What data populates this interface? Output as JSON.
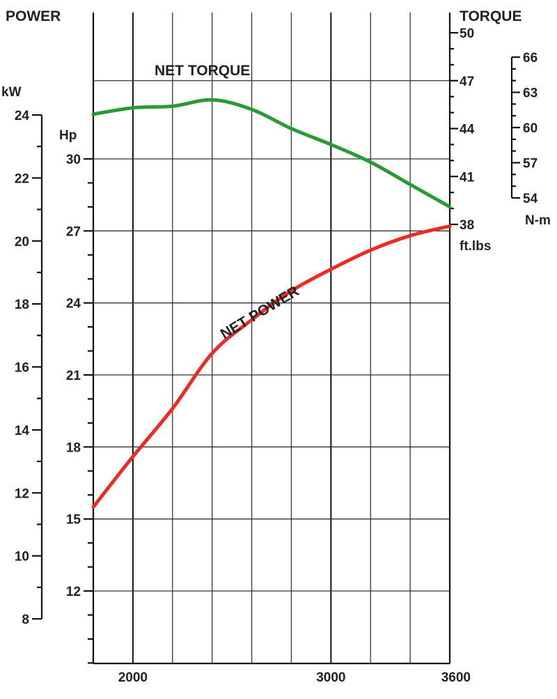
{
  "chart_data": {
    "type": "line",
    "title": "",
    "x": {
      "label": "",
      "range": [
        1800,
        3600
      ],
      "tick_labels": [
        "2000",
        "3000",
        "3600"
      ],
      "tick_values": [
        2000,
        3000,
        3600
      ]
    },
    "left_axis": {
      "title": "POWER",
      "kw": {
        "unit": "kW",
        "range": [
          8,
          24
        ],
        "ticks": [
          "8",
          "10",
          "12",
          "14",
          "16",
          "18",
          "20",
          "22",
          "24"
        ]
      },
      "hp": {
        "unit": "Hp",
        "range": [
          9.1,
          30.7
        ],
        "ticks": [
          "12",
          "15",
          "18",
          "21",
          "24",
          "27",
          "30"
        ]
      }
    },
    "right_axis": {
      "title": "TORQUE",
      "ftlbs": {
        "unit": "ft.lbs",
        "range": [
          38,
          50
        ],
        "ticks": [
          "38",
          "41",
          "44",
          "47",
          "50"
        ]
      },
      "nm": {
        "unit": "N-m",
        "range": [
          54,
          66
        ],
        "ticks": [
          "54",
          "57",
          "60",
          "63",
          "66"
        ]
      }
    },
    "series": [
      {
        "name": "NET TORQUE",
        "unit": "ft.lbs",
        "color": "#2a9a34",
        "x": [
          1800,
          2000,
          2200,
          2400,
          2600,
          2800,
          3000,
          3200,
          3400,
          3600
        ],
        "y": [
          44.9,
          45.3,
          45.4,
          45.8,
          45.2,
          44.0,
          43.0,
          41.9,
          40.5,
          39.1
        ]
      },
      {
        "name": "NET POWER",
        "unit": "Hp",
        "color": "#ee2a24",
        "x": [
          1800,
          2000,
          2200,
          2400,
          2600,
          2800,
          3000,
          3200,
          3400,
          3600
        ],
        "y": [
          15.5,
          17.6,
          19.6,
          21.9,
          23.3,
          24.5,
          25.4,
          26.2,
          26.8,
          27.2
        ]
      }
    ],
    "grid": true,
    "colors": {
      "torque": "#2a9a34",
      "power": "#ee2a24",
      "grid": "#333333"
    }
  }
}
